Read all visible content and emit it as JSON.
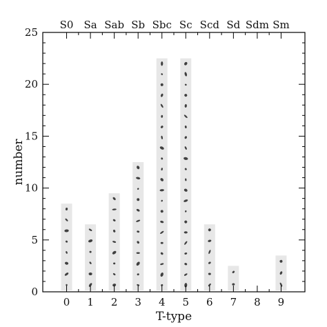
{
  "chart_data": {
    "type": "bar",
    "title": "",
    "xlabel": "T-type",
    "ylabel": "number",
    "categories": [
      "0",
      "1",
      "2",
      "3",
      "4",
      "5",
      "6",
      "7",
      "8",
      "9"
    ],
    "top_categories": [
      "S0",
      "Sa",
      "Sab",
      "Sb",
      "Sbc",
      "Sc",
      "Scd",
      "Sd",
      "Sdm",
      "Sm"
    ],
    "values": [
      8,
      6,
      9,
      12,
      22,
      22,
      6,
      2,
      0,
      3
    ],
    "yticks": [
      "0",
      "5",
      "10",
      "15",
      "20",
      "25"
    ],
    "xlim": [
      -1,
      10
    ],
    "ylim": [
      0,
      25
    ],
    "grid": false,
    "bars_filled_with": "galaxy thumbnail images"
  },
  "colors": {
    "axis": "#000000",
    "bar_fill": "#e7e7e7",
    "galaxy": "#222222"
  }
}
